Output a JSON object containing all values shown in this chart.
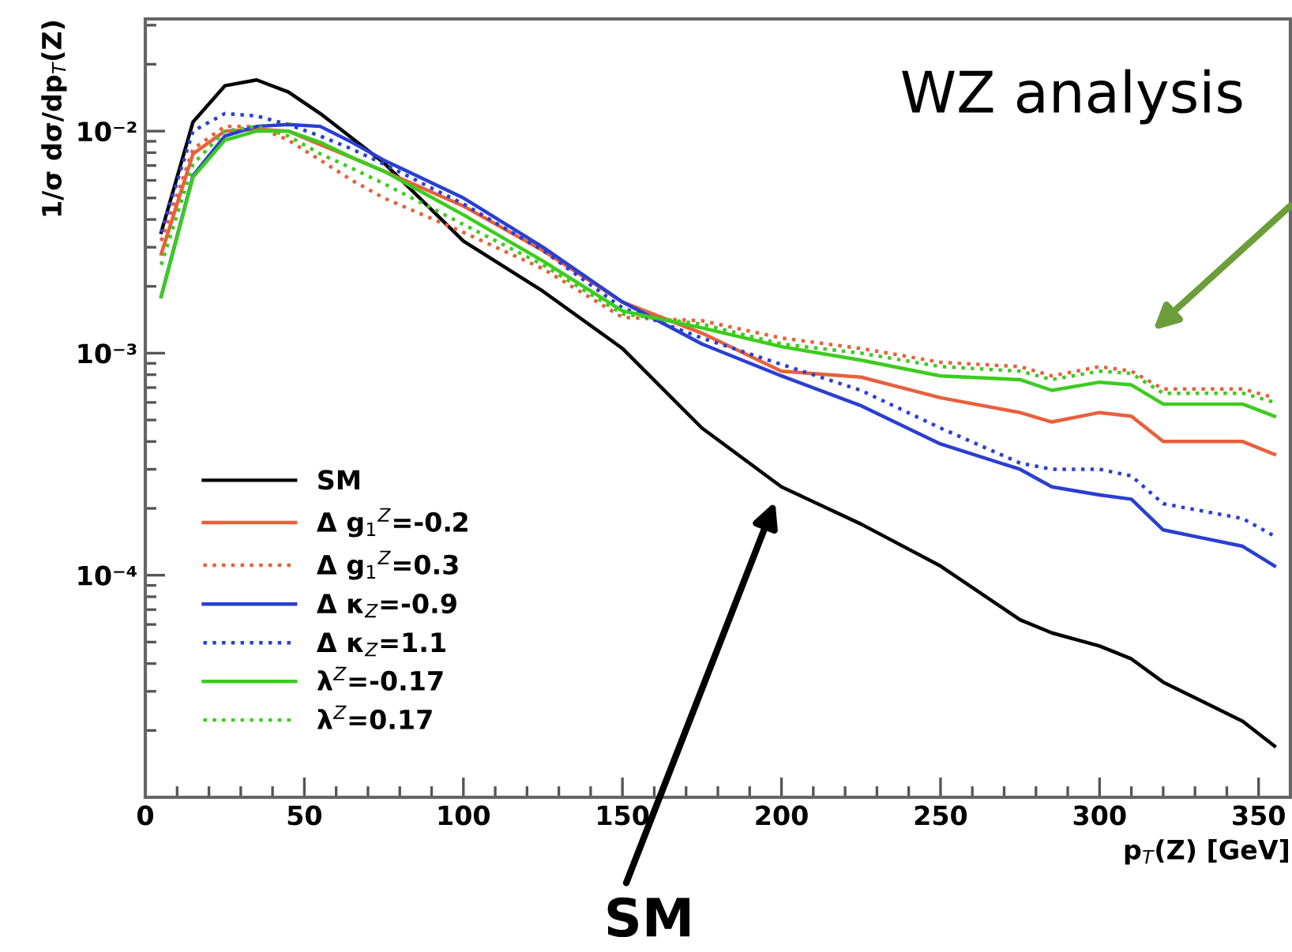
{
  "chart_data": {
    "type": "line",
    "xlabel": "p$_{T}$(Z) [GeV]",
    "ylabel": "1/σ dσ/dp$_{T}$(Z)",
    "x": [
      5,
      15,
      25,
      35,
      45,
      55,
      65,
      75,
      100,
      125,
      150,
      175,
      200,
      225,
      250,
      275,
      285,
      300,
      310,
      320,
      345,
      355
    ],
    "series": [
      {
        "name": "SM",
        "color": "#000000",
        "line_style": "solid",
        "values": [
          0.0035,
          0.011,
          0.016,
          0.017,
          0.015,
          0.012,
          0.0093,
          0.0072,
          0.0032,
          0.0019,
          0.00105,
          0.00046,
          0.00025,
          0.00017,
          0.00011,
          6.3e-05,
          5.5e-05,
          4.8e-05,
          4.2e-05,
          3.3e-05,
          2.2e-05,
          1.7e-05
        ]
      },
      {
        "name": "Δ g$_{1}$$^{Z}$=-0.2",
        "color": "#e8603c",
        "line_style": "solid",
        "values": [
          0.0028,
          0.0079,
          0.01,
          0.0102,
          0.01,
          0.0087,
          0.0076,
          0.0066,
          0.0046,
          0.0029,
          0.0017,
          0.00123,
          0.00083,
          0.00078,
          0.00063,
          0.00054,
          0.00049,
          0.00054,
          0.00052,
          0.0004,
          0.0004,
          0.00035
        ]
      },
      {
        "name": "Δ g$_{1}$$^{Z}$=0.3",
        "color": "#e8603c",
        "line_style": "dotted",
        "values": [
          0.0032,
          0.0083,
          0.0105,
          0.0105,
          0.0091,
          0.0074,
          0.006,
          0.005,
          0.0035,
          0.0024,
          0.00145,
          0.0014,
          0.00117,
          0.00105,
          0.00091,
          0.00087,
          0.00079,
          0.00087,
          0.00083,
          0.00069,
          0.00069,
          0.00063
        ]
      },
      {
        "name": "Δ κ$_{Z}$=-0.9",
        "color": "#2a3fd0",
        "line_style": "solid",
        "values": [
          0.0018,
          0.0063,
          0.0095,
          0.0105,
          0.0107,
          0.0105,
          0.0089,
          0.0074,
          0.005,
          0.003,
          0.0017,
          0.0011,
          0.00079,
          0.00058,
          0.00039,
          0.0003,
          0.00025,
          0.00023,
          0.00022,
          0.00016,
          0.000135,
          0.00011
        ]
      },
      {
        "name": "Δ κ$_{Z}$=1.1",
        "color": "#2a3fd0",
        "line_style": "dotted",
        "values": [
          0.0035,
          0.01,
          0.012,
          0.0117,
          0.0107,
          0.0095,
          0.0083,
          0.0071,
          0.0047,
          0.0029,
          0.0016,
          0.00117,
          0.00089,
          0.00068,
          0.00046,
          0.00032,
          0.0003,
          0.0003,
          0.00028,
          0.00021,
          0.00018,
          0.00015
        ]
      },
      {
        "name": "λ$^{Z}$=-0.17",
        "color": "#3ccc1e",
        "line_style": "solid",
        "values": [
          0.0018,
          0.0062,
          0.0091,
          0.01,
          0.01,
          0.0089,
          0.0076,
          0.0066,
          0.0042,
          0.0026,
          0.00155,
          0.0013,
          0.00107,
          0.00093,
          0.00079,
          0.00076,
          0.00068,
          0.00074,
          0.00072,
          0.00059,
          0.00059,
          0.00052
        ]
      },
      {
        "name": "λ$^{Z}$=0.17",
        "color": "#3ccc1e",
        "line_style": "dotted",
        "values": [
          0.0025,
          0.0071,
          0.01,
          0.0105,
          0.0095,
          0.0079,
          0.0068,
          0.0058,
          0.0038,
          0.0025,
          0.0015,
          0.00135,
          0.0011,
          0.001,
          0.00087,
          0.00083,
          0.00076,
          0.00083,
          0.00081,
          0.00066,
          0.00066,
          0.0006
        ]
      }
    ],
    "log": "y",
    "xlim": [
      0,
      360
    ],
    "ylim": [
      1e-05,
      0.032
    ],
    "xticks": [
      0,
      {
        "value": 10,
        "label": null
      },
      {
        "value": 20,
        "label": null
      },
      {
        "value": 30,
        "label": null
      },
      {
        "value": 40,
        "label": null
      },
      50,
      {
        "value": 60,
        "label": null
      },
      {
        "value": 70,
        "label": null
      },
      {
        "value": 80,
        "label": null
      },
      {
        "value": 90,
        "label": null
      },
      100,
      {
        "value": 110,
        "label": null
      },
      {
        "value": 120,
        "label": null
      },
      {
        "value": 130,
        "label": null
      },
      {
        "value": 140,
        "label": null
      },
      150,
      {
        "value": 160,
        "label": null
      },
      {
        "value": 170,
        "label": null
      },
      {
        "value": 180,
        "label": null
      },
      {
        "value": 190,
        "label": null
      },
      200,
      {
        "value": 210,
        "label": null
      },
      {
        "value": 220,
        "label": null
      },
      {
        "value": 230,
        "label": null
      },
      {
        "value": 240,
        "label": null
      },
      250,
      {
        "value": 260,
        "label": null
      },
      {
        "value": 270,
        "label": null
      },
      {
        "value": 280,
        "label": null
      },
      {
        "value": 290,
        "label": null
      },
      300,
      {
        "value": 310,
        "label": null
      },
      {
        "value": 320,
        "label": null
      },
      {
        "value": 330,
        "label": null
      },
      {
        "value": 340,
        "label": null
      },
      350
    ],
    "yticks": [
      {
        "value": 0.01,
        "label": "10⁻²"
      },
      {
        "value": 0.001,
        "label": "10⁻³"
      },
      {
        "value": 0.0001,
        "label": "10⁻⁴"
      }
    ],
    "grid": false,
    "legend": "lower left",
    "marker": "none",
    "annotations": [
      "WZ analysis",
      "SM"
    ]
  }
}
